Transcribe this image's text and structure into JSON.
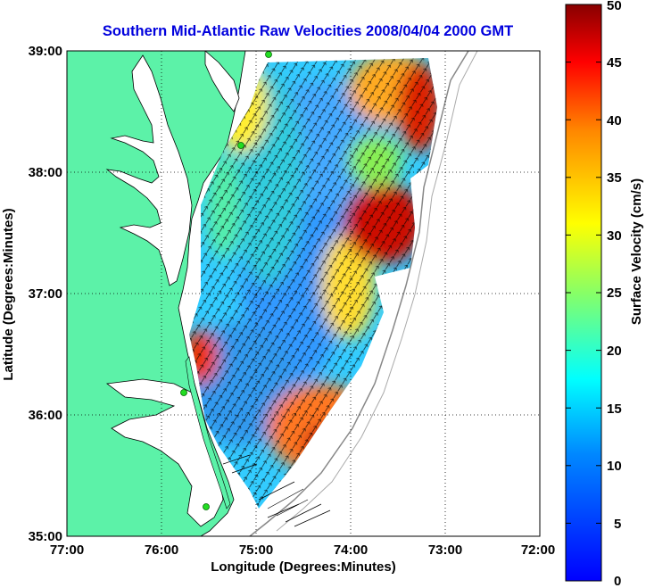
{
  "title": "Southern Mid-Atlantic Raw Velocities 2008/04/04 2000 GMT",
  "title_color": "#0000dd",
  "x_axis": {
    "label": "Longitude (Degrees:Minutes)",
    "ticks": [
      "77:00",
      "76:00",
      "75:00",
      "74:00",
      "73:00",
      "72:00"
    ],
    "range": [
      -77,
      -72
    ]
  },
  "y_axis": {
    "label": "Latitude (Degrees:Minutes)",
    "ticks": [
      "39:00",
      "38:00",
      "37:00",
      "36:00",
      "35:00"
    ],
    "range": [
      35,
      39
    ]
  },
  "colorbar": {
    "label": "Surface Velocity (cm/s)",
    "ticks": [
      "50",
      "45",
      "40",
      "35",
      "30",
      "25",
      "20",
      "15",
      "10",
      "5",
      "0"
    ],
    "range": [
      0,
      50
    ],
    "colormap": "jet"
  },
  "colors": {
    "land": "#5cf2a8",
    "water": "#ffffff",
    "coastline": "#000000",
    "bathymetry": "#888888",
    "station": "#22dd22"
  },
  "grid": "dotted",
  "chart_data": {
    "type": "heatmap",
    "title": "Southern Mid-Atlantic Raw Velocities 2008/04/04 2000 GMT",
    "xlabel": "Longitude (Degrees:Minutes)",
    "ylabel": "Latitude (Degrees:Minutes)",
    "zlabel": "Surface Velocity (cm/s)",
    "xlim": [
      -77,
      -72
    ],
    "ylim": [
      35,
      39
    ],
    "zlim": [
      0,
      50
    ],
    "speed_regions": [
      {
        "region": "northeast corner near 73:20W 38:40N",
        "speed_cm_s": 45
      },
      {
        "region": "east bulge near 73:40W 37:30N",
        "speed_cm_s": 48
      },
      {
        "region": "mid-shelf core near 74:40W 37:15N",
        "speed_cm_s": 8
      },
      {
        "region": "southern shelf near 74:40W 36:00N",
        "speed_cm_s": 10
      },
      {
        "region": "Cape Hatteras offshore near 74:10W 35:50N",
        "speed_cm_s": 45
      },
      {
        "region": "nearshore near 75:30W 36:30N",
        "speed_cm_s": 40
      }
    ],
    "stations": [
      {
        "name": "north",
        "lon": -74.87,
        "lat": 38.98
      },
      {
        "name": "mid-north",
        "lon": -75.15,
        "lat": 38.2
      },
      {
        "name": "mid-south",
        "lon": -75.45,
        "lat": 36.2
      },
      {
        "name": "south",
        "lon": -75.5,
        "lat": 35.25
      }
    ]
  }
}
